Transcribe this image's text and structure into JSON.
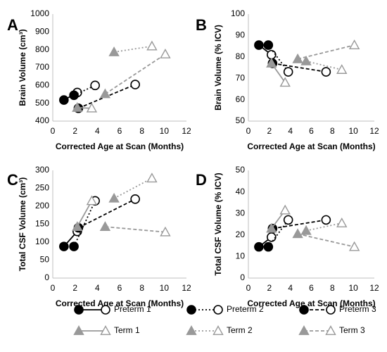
{
  "figure": {
    "legend": [
      {
        "name": "Preterm 1",
        "color": "#000000",
        "dash": "solid",
        "open_end": true,
        "marker": "circle"
      },
      {
        "name": "Preterm 2",
        "color": "#000000",
        "dash": "dot",
        "open_end": true,
        "marker": "circle"
      },
      {
        "name": "Preterm 3",
        "color": "#000000",
        "dash": "dash",
        "open_end": true,
        "marker": "circle"
      },
      {
        "name": "Term 1",
        "color": "#999999",
        "dash": "solid",
        "open_end": true,
        "marker": "triangle"
      },
      {
        "name": "Term 2",
        "color": "#999999",
        "dash": "dot",
        "open_end": true,
        "marker": "triangle"
      },
      {
        "name": "Term 3",
        "color": "#999999",
        "dash": "dash",
        "open_end": true,
        "marker": "triangle"
      }
    ]
  },
  "chart_data": [
    {
      "panel": "A",
      "type": "scatter",
      "xlabel": "Corrected Age at Scan (Months)",
      "ylabel": "Brain Volume (cm³)",
      "xlim": [
        0,
        12
      ],
      "ylim": [
        400,
        1000
      ],
      "xticks": [
        0,
        2,
        4,
        6,
        8,
        10,
        12
      ],
      "yticks": [
        400,
        500,
        600,
        700,
        800,
        900,
        1000
      ],
      "series": [
        {
          "name": "Preterm 1",
          "points": [
            [
              1.0,
              518
            ],
            [
              2.2,
              560
            ]
          ]
        },
        {
          "name": "Preterm 2",
          "points": [
            [
              1.9,
              545
            ],
            [
              3.8,
              600
            ]
          ]
        },
        {
          "name": "Preterm 3",
          "points": [
            [
              2.3,
              472
            ],
            [
              7.4,
              605
            ]
          ]
        },
        {
          "name": "Term 1",
          "points": [
            [
              2.2,
              475
            ],
            [
              3.5,
              472
            ]
          ]
        },
        {
          "name": "Term 2",
          "points": [
            [
              5.5,
              787
            ],
            [
              8.9,
              820
            ]
          ]
        },
        {
          "name": "Term 3",
          "points": [
            [
              4.7,
              552
            ],
            [
              10.1,
              775
            ]
          ]
        }
      ]
    },
    {
      "panel": "B",
      "type": "scatter",
      "xlabel": "Corrected Age at Scan (Months)",
      "ylabel": "Brain Volume (% ICV)",
      "xlim": [
        0,
        12
      ],
      "ylim": [
        50,
        100
      ],
      "xticks": [
        0,
        2,
        4,
        6,
        8,
        10,
        12
      ],
      "yticks": [
        50,
        60,
        70,
        80,
        90,
        100
      ],
      "series": [
        {
          "name": "Preterm 1",
          "points": [
            [
              1.0,
              85.5
            ],
            [
              2.2,
              81
            ]
          ]
        },
        {
          "name": "Preterm 2",
          "points": [
            [
              1.9,
              85.5
            ],
            [
              3.8,
              73
            ]
          ]
        },
        {
          "name": "Preterm 3",
          "points": [
            [
              2.3,
              77
            ],
            [
              7.4,
              73
            ]
          ]
        },
        {
          "name": "Term 1",
          "points": [
            [
              2.2,
              77
            ],
            [
              3.5,
              68
            ]
          ]
        },
        {
          "name": "Term 2",
          "points": [
            [
              5.5,
              78
            ],
            [
              8.9,
              74
            ]
          ]
        },
        {
          "name": "Term 3",
          "points": [
            [
              4.7,
              79
            ],
            [
              10.1,
              85.5
            ]
          ]
        }
      ]
    },
    {
      "panel": "C",
      "type": "scatter",
      "xlabel": "Corrected Age at Scan (Months)",
      "ylabel": "Total CSF Volume (cm³)",
      "xlim": [
        0,
        12
      ],
      "ylim": [
        0,
        300
      ],
      "xticks": [
        0,
        2,
        4,
        6,
        8,
        10,
        12
      ],
      "yticks": [
        0,
        50,
        100,
        150,
        200,
        250,
        300
      ],
      "series": [
        {
          "name": "Preterm 1",
          "points": [
            [
              1.0,
              88
            ],
            [
              2.2,
              130
            ]
          ]
        },
        {
          "name": "Preterm 2",
          "points": [
            [
              1.9,
              88
            ],
            [
              3.8,
              215
            ]
          ]
        },
        {
          "name": "Preterm 3",
          "points": [
            [
              2.3,
              140
            ],
            [
              7.4,
              220
            ]
          ]
        },
        {
          "name": "Term 1",
          "points": [
            [
              2.2,
              143
            ],
            [
              3.5,
              215
            ]
          ]
        },
        {
          "name": "Term 2",
          "points": [
            [
              5.5,
              222
            ],
            [
              8.9,
              278
            ]
          ]
        },
        {
          "name": "Term 3",
          "points": [
            [
              4.7,
              143
            ],
            [
              10.1,
              128
            ]
          ]
        }
      ]
    },
    {
      "panel": "D",
      "type": "scatter",
      "xlabel": "Corrected Age at Scan (Months)",
      "ylabel": "Total CSF Volume (% ICV)",
      "xlim": [
        0,
        12
      ],
      "ylim": [
        0,
        50
      ],
      "xticks": [
        0,
        2,
        4,
        6,
        8,
        10,
        12
      ],
      "yticks": [
        0,
        10,
        20,
        30,
        40,
        50
      ],
      "series": [
        {
          "name": "Preterm 1",
          "points": [
            [
              1.0,
              14.5
            ],
            [
              2.2,
              19
            ]
          ]
        },
        {
          "name": "Preterm 2",
          "points": [
            [
              1.9,
              14.5
            ],
            [
              3.8,
              27
            ]
          ]
        },
        {
          "name": "Preterm 3",
          "points": [
            [
              2.3,
              23
            ],
            [
              7.4,
              27
            ]
          ]
        },
        {
          "name": "Term 1",
          "points": [
            [
              2.2,
              23
            ],
            [
              3.5,
              31.5
            ]
          ]
        },
        {
          "name": "Term 2",
          "points": [
            [
              5.5,
              22
            ],
            [
              8.9,
              25.5
            ]
          ]
        },
        {
          "name": "Term 3",
          "points": [
            [
              4.7,
              20.5
            ],
            [
              10.1,
              14.5
            ]
          ]
        }
      ]
    }
  ]
}
